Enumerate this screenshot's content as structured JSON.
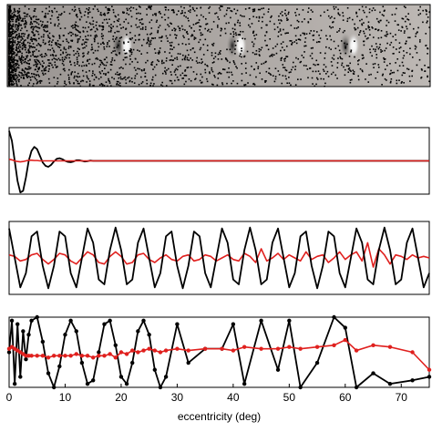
{
  "chart_data": [
    {
      "type": "line",
      "xlim": [
        0,
        75
      ],
      "ylim": [
        -1,
        1
      ],
      "x": [
        0,
        0.5,
        1,
        1.5,
        2,
        2.5,
        3,
        3.5,
        4,
        4.5,
        5,
        5.5,
        6,
        6.5,
        7,
        7.5,
        8,
        8.5,
        9,
        9.5,
        10,
        10.5,
        11,
        11.5,
        12,
        12.5,
        13,
        13.5,
        14,
        14.5,
        15,
        20,
        25,
        30,
        35,
        40,
        45,
        50,
        55,
        60,
        65,
        70,
        75
      ],
      "series": [
        {
          "color": "#000000",
          "values": [
            0.9,
            0.6,
            0,
            -0.6,
            -0.95,
            -0.9,
            -0.5,
            0,
            0.3,
            0.42,
            0.35,
            0.15,
            -0.05,
            -0.15,
            -0.18,
            -0.12,
            -0.02,
            0.06,
            0.08,
            0.05,
            0,
            -0.03,
            -0.04,
            -0.02,
            0.02,
            0.02,
            0,
            -0.02,
            -0.01,
            0.01,
            0,
            0,
            0,
            0,
            0,
            0,
            0,
            0,
            0,
            0,
            0,
            0,
            0
          ]
        },
        {
          "color": "#e0201e",
          "values": [
            0.05,
            0.03,
            0,
            -0.02,
            -0.03,
            -0.02,
            0,
            0.02,
            0.02,
            0.01,
            0.01,
            0,
            0,
            0,
            0,
            0,
            0,
            0,
            0,
            0,
            0,
            0,
            0,
            0,
            0,
            0,
            0,
            0,
            0,
            0,
            0,
            0,
            0,
            0,
            0,
            0,
            0,
            0,
            0,
            0,
            0,
            0,
            0
          ]
        }
      ]
    },
    {
      "type": "line",
      "xlim": [
        0,
        75
      ],
      "ylim": [
        -1.2,
        1.2
      ],
      "x": [
        0,
        1,
        2,
        3,
        4,
        5,
        6,
        7,
        8,
        9,
        10,
        11,
        12,
        13,
        14,
        15,
        16,
        17,
        18,
        19,
        20,
        21,
        22,
        23,
        24,
        25,
        26,
        27,
        28,
        29,
        30,
        31,
        32,
        33,
        34,
        35,
        36,
        37,
        38,
        39,
        40,
        41,
        42,
        43,
        44,
        45,
        46,
        47,
        48,
        49,
        50,
        51,
        52,
        53,
        54,
        55,
        56,
        57,
        58,
        59,
        60,
        61,
        62,
        63,
        64,
        65,
        66,
        67,
        68,
        69,
        70,
        71,
        72,
        73,
        74,
        75
      ],
      "series": [
        {
          "color": "#e0201e",
          "values": [
            0.1,
            0.05,
            -0.1,
            -0.05,
            0.1,
            0.15,
            -0.05,
            -0.2,
            -0.05,
            0.15,
            0.1,
            -0.1,
            -0.2,
            0,
            0.2,
            0.1,
            -0.15,
            -0.2,
            0.05,
            0.2,
            0.05,
            -0.2,
            -0.15,
            0.1,
            0.15,
            -0.05,
            -0.15,
            0,
            0.1,
            -0.05,
            -0.1,
            0.05,
            0.1,
            -0.1,
            -0.05,
            0.1,
            0.05,
            -0.1,
            0,
            0.1,
            -0.05,
            -0.1,
            0.15,
            0.05,
            -0.15,
            0.3,
            -0.1,
            0,
            0.15,
            -0.05,
            0.1,
            0,
            -0.1,
            0.2,
            -0.05,
            0.05,
            0.1,
            -0.15,
            0,
            0.2,
            -0.05,
            0.1,
            0.2,
            -0.1,
            0.5,
            -0.3,
            0.3,
            0.1,
            -0.2,
            0.1,
            0.05,
            -0.05,
            0.1,
            0,
            0.05,
            0
          ]
        },
        {
          "color": "#000000",
          "values": [
            0.97,
            0,
            -0.97,
            -0.5,
            0.71,
            0.87,
            -0.26,
            -1,
            -0.26,
            0.87,
            0.71,
            -0.5,
            -0.97,
            0,
            0.97,
            0.5,
            -0.71,
            -0.87,
            0.26,
            1,
            0.26,
            -0.87,
            -0.71,
            0.5,
            0.97,
            0,
            -0.97,
            -0.5,
            0.71,
            0.87,
            -0.26,
            -1,
            -0.26,
            0.87,
            0.71,
            -0.5,
            -0.97,
            0,
            0.97,
            0.5,
            -0.71,
            -0.87,
            0.26,
            1,
            0.26,
            -0.87,
            -0.71,
            0.5,
            0.97,
            0,
            -0.97,
            -0.5,
            0.71,
            0.87,
            -0.26,
            -1,
            -0.26,
            0.87,
            0.71,
            -0.5,
            -0.97,
            0,
            0.97,
            0.5,
            -0.71,
            -0.87,
            0.26,
            1,
            0.26,
            -0.87,
            -0.71,
            0.5,
            0.97,
            0,
            -0.97,
            -0.5
          ]
        }
      ]
    },
    {
      "type": "line",
      "markers": true,
      "xlim": [
        0,
        75
      ],
      "ylim": [
        -1,
        1
      ],
      "xticks": [
        0,
        10,
        20,
        30,
        40,
        50,
        60,
        70
      ],
      "xlabel": "eccentricity (deg)",
      "x": [
        0,
        0.5,
        1,
        1.5,
        2,
        2.5,
        3,
        3.5,
        4,
        5,
        6,
        7,
        8,
        9,
        10,
        11,
        12,
        13,
        14,
        15,
        16,
        17,
        18,
        19,
        20,
        21,
        22,
        23,
        24,
        25,
        26,
        27,
        28,
        30,
        32,
        35,
        38,
        40,
        42,
        45,
        48,
        50,
        52,
        55,
        58,
        60,
        62,
        65,
        68,
        72,
        75
      ],
      "series": [
        {
          "color": "#000000",
          "values": [
            0,
            0.9,
            -0.9,
            0.8,
            -0.7,
            0.6,
            -0.2,
            0.5,
            0.9,
            1,
            0.3,
            -0.6,
            -1,
            -0.4,
            0.5,
            0.9,
            0.6,
            -0.3,
            -0.9,
            -0.8,
            0,
            0.8,
            0.9,
            0.2,
            -0.7,
            -0.9,
            -0.3,
            0.6,
            0.9,
            0.5,
            -0.5,
            -1,
            -0.7,
            0.8,
            -0.3,
            0.1,
            0.1,
            0.8,
            -0.9,
            0.9,
            -0.5,
            0.9,
            -1,
            -0.3,
            1,
            0.7,
            -1,
            -0.6,
            -0.9,
            -0.8,
            -0.7
          ]
        },
        {
          "color": "#e0201e",
          "values": [
            0.1,
            0.15,
            0.1,
            0.05,
            0,
            -0.05,
            -0.1,
            -0.1,
            -0.1,
            -0.1,
            -0.1,
            -0.15,
            -0.1,
            -0.1,
            -0.1,
            -0.1,
            -0.05,
            -0.1,
            -0.1,
            -0.15,
            -0.1,
            -0.1,
            -0.05,
            -0.15,
            0,
            -0.05,
            0.05,
            0,
            0.05,
            0.1,
            0.05,
            0,
            0.05,
            0.1,
            0.05,
            0.1,
            0.1,
            0.05,
            0.15,
            0.1,
            0.1,
            0.15,
            0.1,
            0.15,
            0.2,
            0.35,
            0.05,
            0.2,
            0.15,
            0,
            -0.5
          ]
        }
      ]
    }
  ]
}
